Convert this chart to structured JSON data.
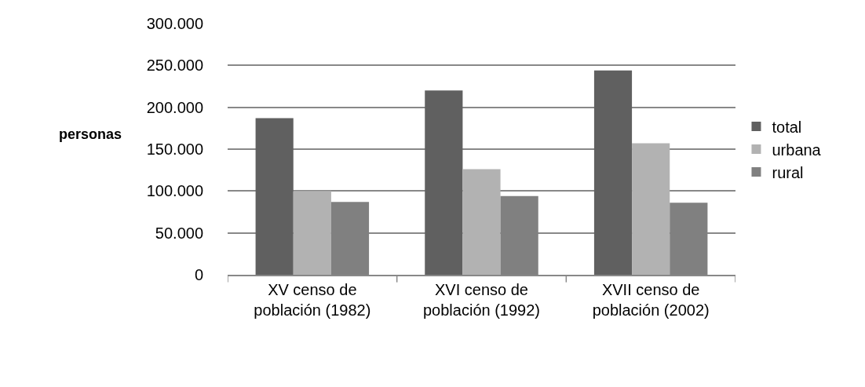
{
  "chart_data": {
    "type": "bar",
    "ylabel": "personas",
    "categories": [
      "XV censo de población (1982)",
      "XVI censo de población (1992)",
      "XVII censo de población (2002)"
    ],
    "series": [
      {
        "name": "total",
        "color": "#606060",
        "values": [
          187000,
          220000,
          244000
        ]
      },
      {
        "name": "urbana",
        "color": "#b2b2b2",
        "values": [
          100000,
          126000,
          157000
        ]
      },
      {
        "name": "rural",
        "color": "#808080",
        "values": [
          87000,
          94000,
          86000
        ]
      }
    ],
    "ylim": [
      0,
      300000
    ],
    "yticks": [
      {
        "value": 0,
        "label": "0"
      },
      {
        "value": 50000,
        "label": "50.000"
      },
      {
        "value": 100000,
        "label": "100.000"
      },
      {
        "value": 150000,
        "label": "150.000"
      },
      {
        "value": 200000,
        "label": "200.000"
      },
      {
        "value": 250000,
        "label": "250.000"
      },
      {
        "value": 300000,
        "label": "300.000"
      }
    ],
    "grid": "y",
    "legend": "right"
  }
}
